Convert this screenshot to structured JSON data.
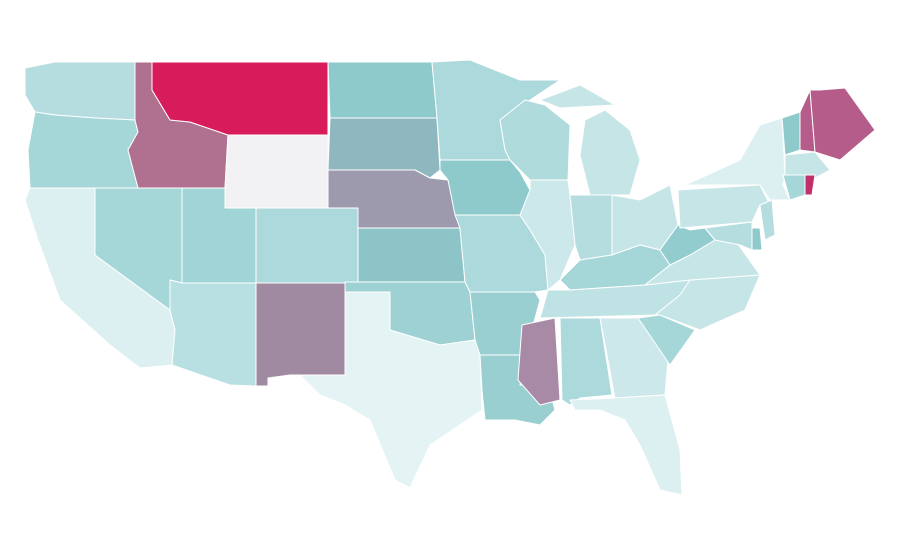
{
  "map": {
    "fills": [
      "#b5dde0",
      "#a5d6d8",
      "#dcf0f1",
      "#a5d6d8",
      "#b0708f",
      "#d81b5a",
      "#f2f2f4",
      "#a0d4d6",
      "#b8dfe1",
      "#acd9db",
      "#a08aa2",
      "#8ecacc",
      "#8fb7bf",
      "#9d9aae",
      "#8dc4c7",
      "#9dd1d3",
      "#e4f3f4",
      "#acd9db",
      "#8ecacc",
      "#acd9db",
      "#99cfd1",
      "#99cfd1",
      "#b0dbdd",
      "#cce8ea",
      "#b5dde0",
      "#c5e5e7",
      "#c5e5e7",
      "#a5d6d8",
      "#bfe2e4",
      "#a88aa6",
      "#acd9db",
      "#cce8ea",
      "#dcf0f1",
      "#a5d6d8",
      "#c5e5e7",
      "#c5e5e7",
      "#92cccf",
      "#c5e5e7",
      "#dcf0f1",
      "#8ecacc",
      "#b55c8a",
      "#b55c8a",
      "#c5e5e7",
      "#a5d6d8",
      "#c0306a",
      "#b5dde0",
      "#8ecacc",
      "#b5dde0"
    ]
  }
}
